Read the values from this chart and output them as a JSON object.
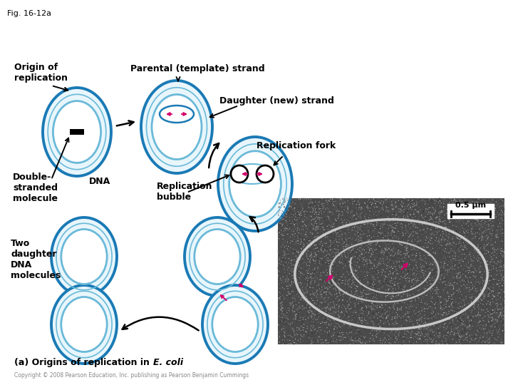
{
  "fig_label": "Fig. 16-12a",
  "background_color": "#ffffff",
  "outer_circle_color": "#1a7ab5",
  "inner_circle_color": "#6ab9d8",
  "light_fill": "#e8f6fc",
  "dark_outer": "#1a7ab5",
  "arrow_color": "#1a1a1a",
  "pink_color": "#d4006a",
  "title_bottom": "(a) Origins of replication in ",
  "title_italic": "E. coli",
  "labels": {
    "fig": "Fig. 16-12a",
    "origin": "Origin of\nreplication",
    "parental": "Parental (template) strand",
    "daughter": "Daughter (new) strand",
    "double_stranded": "Double-\nstranded\nmolecule",
    "dna": "DNA",
    "rep_fork": "Replication fork",
    "rep_bubble": "Replication\nbubble",
    "two_daughter": "Two\ndaughter\nDNA\nmolecules",
    "scale": "0.5 μm"
  }
}
